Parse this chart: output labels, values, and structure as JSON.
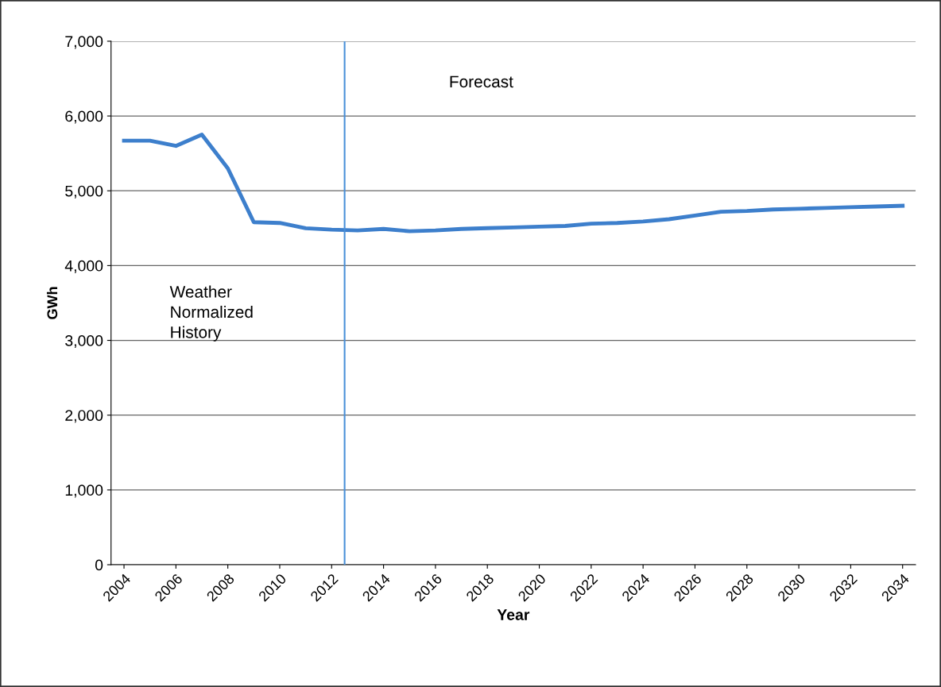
{
  "chart_data": {
    "type": "line",
    "xlabel": "Year",
    "ylabel": "GWh",
    "x": [
      2004,
      2005,
      2006,
      2007,
      2008,
      2009,
      2010,
      2011,
      2012,
      2013,
      2014,
      2015,
      2016,
      2017,
      2018,
      2019,
      2020,
      2021,
      2022,
      2023,
      2024,
      2025,
      2026,
      2027,
      2028,
      2029,
      2030,
      2031,
      2032,
      2033,
      2034
    ],
    "series": [
      {
        "color": "#3d7fcc",
        "values": [
          5670,
          5670,
          5600,
          5750,
          5300,
          4580,
          4570,
          4500,
          4480,
          4470,
          4490,
          4460,
          4470,
          4490,
          4500,
          4510,
          4520,
          4530,
          4560,
          4570,
          4590,
          4620,
          4670,
          4720,
          4730,
          4750,
          4760,
          4770,
          4780,
          4790,
          4800
        ]
      }
    ],
    "xlim": [
      2003.5,
      2034.5
    ],
    "xticks": [
      2004,
      2006,
      2008,
      2010,
      2012,
      2014,
      2016,
      2018,
      2020,
      2022,
      2024,
      2026,
      2028,
      2030,
      2032,
      2034
    ],
    "ylim": [
      0,
      7000
    ],
    "yticks": [
      {
        "value": 0,
        "label": "0"
      },
      {
        "value": 1000,
        "label": "1,000"
      },
      {
        "value": 2000,
        "label": "2,000"
      },
      {
        "value": 3000,
        "label": "3,000"
      },
      {
        "value": 4000,
        "label": "4,000"
      },
      {
        "value": 5000,
        "label": "5,000"
      },
      {
        "value": 6000,
        "label": "6,000"
      },
      {
        "value": 7000,
        "label": "7,000"
      }
    ],
    "grid": "y",
    "legend": false,
    "marker": "none",
    "line_style": "solid",
    "ref_lines": [
      {
        "axis": "x",
        "value": 2012.5,
        "color": "#4a90d9"
      }
    ],
    "annotations": [
      "Forecast",
      "Weather\nNormalized\nHistory"
    ]
  }
}
